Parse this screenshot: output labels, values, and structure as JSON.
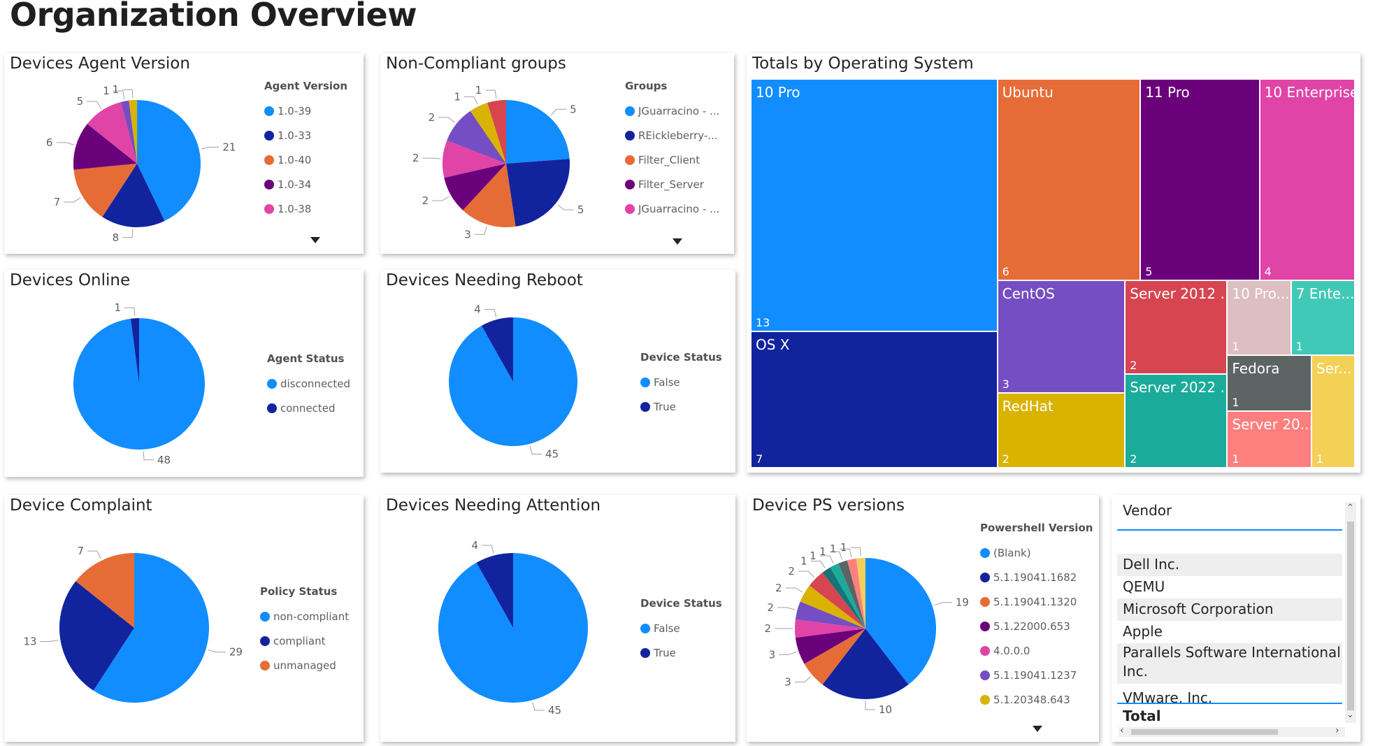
{
  "page": {
    "title": "Organization Overview"
  },
  "colors": {
    "blue": "#118DFF",
    "navy": "#12239E",
    "orange": "#E66C37",
    "purple": "#6B007B",
    "pink": "#E044A7",
    "violet": "#744EC2",
    "yellow": "#D9B300",
    "red": "#D64550",
    "teal": "#197278",
    "grey": "#808080"
  },
  "agent_version": {
    "title": "Devices Agent Version",
    "legend_title": "Agent Version",
    "legend": [
      "1.0-39",
      "1.0-33",
      "1.0-40",
      "1.0-34",
      "1.0-38"
    ],
    "chart_data": {
      "type": "pie",
      "title": "Devices Agent Version",
      "slices": [
        {
          "label": "1.0-39",
          "value": 21,
          "color": "#118DFF"
        },
        {
          "label": "1.0-33",
          "value": 8,
          "color": "#12239E"
        },
        {
          "label": "1.0-40",
          "value": 7,
          "color": "#E66C37"
        },
        {
          "label": "1.0-34",
          "value": 6,
          "color": "#6B007B"
        },
        {
          "label": "1.0-38",
          "value": 5,
          "color": "#E044A7"
        },
        {
          "label": "",
          "value": 1,
          "color": "#744EC2"
        },
        {
          "label": "",
          "value": 1,
          "color": "#D9B300"
        }
      ]
    }
  },
  "noncompliant_groups": {
    "title": "Non-Compliant groups",
    "legend_title": "Groups",
    "legend": [
      "JGuarracino - ...",
      "REickleberry-...",
      "Filter_Client",
      "Filter_Server",
      "JGuarracino - ..."
    ],
    "chart_data": {
      "type": "pie",
      "title": "Non-Compliant groups",
      "slices": [
        {
          "label": "JGuarracino - ...",
          "value": 5,
          "color": "#118DFF"
        },
        {
          "label": "REickleberry-...",
          "value": 5,
          "color": "#12239E"
        },
        {
          "label": "Filter_Client",
          "value": 3,
          "color": "#E66C37"
        },
        {
          "label": "Filter_Server",
          "value": 2,
          "color": "#6B007B"
        },
        {
          "label": "JGuarracino - ...",
          "value": 2,
          "color": "#E044A7"
        },
        {
          "label": "",
          "value": 2,
          "color": "#744EC2"
        },
        {
          "label": "",
          "value": 1,
          "color": "#D9B300"
        },
        {
          "label": "",
          "value": 1,
          "color": "#D64550"
        }
      ]
    }
  },
  "os_totals": {
    "title": "Totals by Operating System",
    "chart_data": {
      "type": "treemap",
      "title": "Totals by Operating System",
      "tiles": [
        {
          "name": "10 Pro",
          "value": 13,
          "color": "#118DFF"
        },
        {
          "name": "OS X",
          "value": 7,
          "color": "#12239E"
        },
        {
          "name": "Ubuntu",
          "value": 6,
          "color": "#E66C37"
        },
        {
          "name": "11 Pro",
          "value": 5,
          "color": "#6B007B"
        },
        {
          "name": "10 Enterprise",
          "value": 4,
          "color": "#E044A7"
        },
        {
          "name": "CentOS",
          "value": 3,
          "color": "#744EC2"
        },
        {
          "name": "RedHat",
          "value": 2,
          "color": "#D9B300"
        },
        {
          "name": "Server 2012 ...",
          "value": 2,
          "color": "#D64550"
        },
        {
          "name": "Server 2022 ...",
          "value": 2,
          "color": "#1AAB9B"
        },
        {
          "name": "10 Pro...",
          "value": 1,
          "color": "#DDBEC1"
        },
        {
          "name": "7 Ente...",
          "value": 1,
          "color": "#41C9B7"
        },
        {
          "name": "Fedora",
          "value": 1,
          "color": "#5C6464"
        },
        {
          "name": "Server 20...",
          "value": 1,
          "color": "#FF7F7F"
        },
        {
          "name": "Ser...",
          "value": 1,
          "color": "#F3D056"
        }
      ]
    }
  },
  "devices_online": {
    "title": "Devices Online",
    "legend_title": "Agent Status",
    "legend": [
      "disconnected",
      "connected"
    ],
    "chart_data": {
      "type": "pie",
      "title": "Devices Online",
      "slices": [
        {
          "label": "disconnected",
          "value": 48,
          "color": "#118DFF"
        },
        {
          "label": "connected",
          "value": 1,
          "color": "#12239E"
        }
      ]
    }
  },
  "needing_reboot": {
    "title": "Devices Needing Reboot",
    "legend_title": "Device Status",
    "legend": [
      "False",
      "True"
    ],
    "chart_data": {
      "type": "pie",
      "title": "Devices Needing Reboot",
      "slices": [
        {
          "label": "False",
          "value": 45,
          "color": "#118DFF"
        },
        {
          "label": "True",
          "value": 4,
          "color": "#12239E"
        }
      ]
    }
  },
  "device_complaint": {
    "title": "Device Complaint",
    "legend_title": "Policy Status",
    "legend": [
      "non-compliant",
      "compliant",
      "unmanaged"
    ],
    "chart_data": {
      "type": "pie",
      "title": "Device Complaint",
      "slices": [
        {
          "label": "non-compliant",
          "value": 29,
          "color": "#118DFF"
        },
        {
          "label": "compliant",
          "value": 13,
          "color": "#12239E"
        },
        {
          "label": "unmanaged",
          "value": 7,
          "color": "#E66C37"
        }
      ]
    }
  },
  "needing_attention": {
    "title": "Devices Needing Attention",
    "legend_title": "Device Status",
    "legend": [
      "False",
      "True"
    ],
    "chart_data": {
      "type": "pie",
      "title": "Devices Needing Attention",
      "slices": [
        {
          "label": "False",
          "value": 45,
          "color": "#118DFF"
        },
        {
          "label": "True",
          "value": 4,
          "color": "#12239E"
        }
      ]
    }
  },
  "ps_versions": {
    "title": "Device PS versions",
    "legend_title": "Powershell Version",
    "legend": [
      "(Blank)",
      "5.1.19041.1682",
      "5.1.19041.1320",
      "5.1.22000.653",
      "4.0.0.0",
      "5.1.19041.1237",
      "5.1.20348.643"
    ],
    "chart_data": {
      "type": "pie",
      "title": "Device PS versions",
      "slices": [
        {
          "label": "(Blank)",
          "value": 19,
          "color": "#118DFF"
        },
        {
          "label": "5.1.19041.1682",
          "value": 10,
          "color": "#12239E"
        },
        {
          "label": "5.1.19041.1320",
          "value": 3,
          "color": "#E66C37"
        },
        {
          "label": "5.1.22000.653",
          "value": 3,
          "color": "#6B007B"
        },
        {
          "label": "4.0.0.0",
          "value": 2,
          "color": "#E044A7"
        },
        {
          "label": "5.1.19041.1237",
          "value": 2,
          "color": "#744EC2"
        },
        {
          "label": "5.1.20348.643",
          "value": 2,
          "color": "#D9B300"
        },
        {
          "label": "",
          "value": 2,
          "color": "#D64550"
        },
        {
          "label": "",
          "value": 1,
          "color": "#197278"
        },
        {
          "label": "",
          "value": 1,
          "color": "#1AAB9B"
        },
        {
          "label": "",
          "value": 1,
          "color": "#5C6464"
        },
        {
          "label": "",
          "value": 1,
          "color": "#FF7F7F"
        },
        {
          "label": "",
          "value": 1,
          "color": "#F3D056"
        }
      ]
    }
  },
  "vendor": {
    "header": "Vendor",
    "rows": [
      "Dell Inc.",
      "QEMU",
      "Microsoft Corporation",
      "Apple",
      "Parallels Software International Inc.",
      "VMware, Inc."
    ],
    "total_label": "Total"
  }
}
